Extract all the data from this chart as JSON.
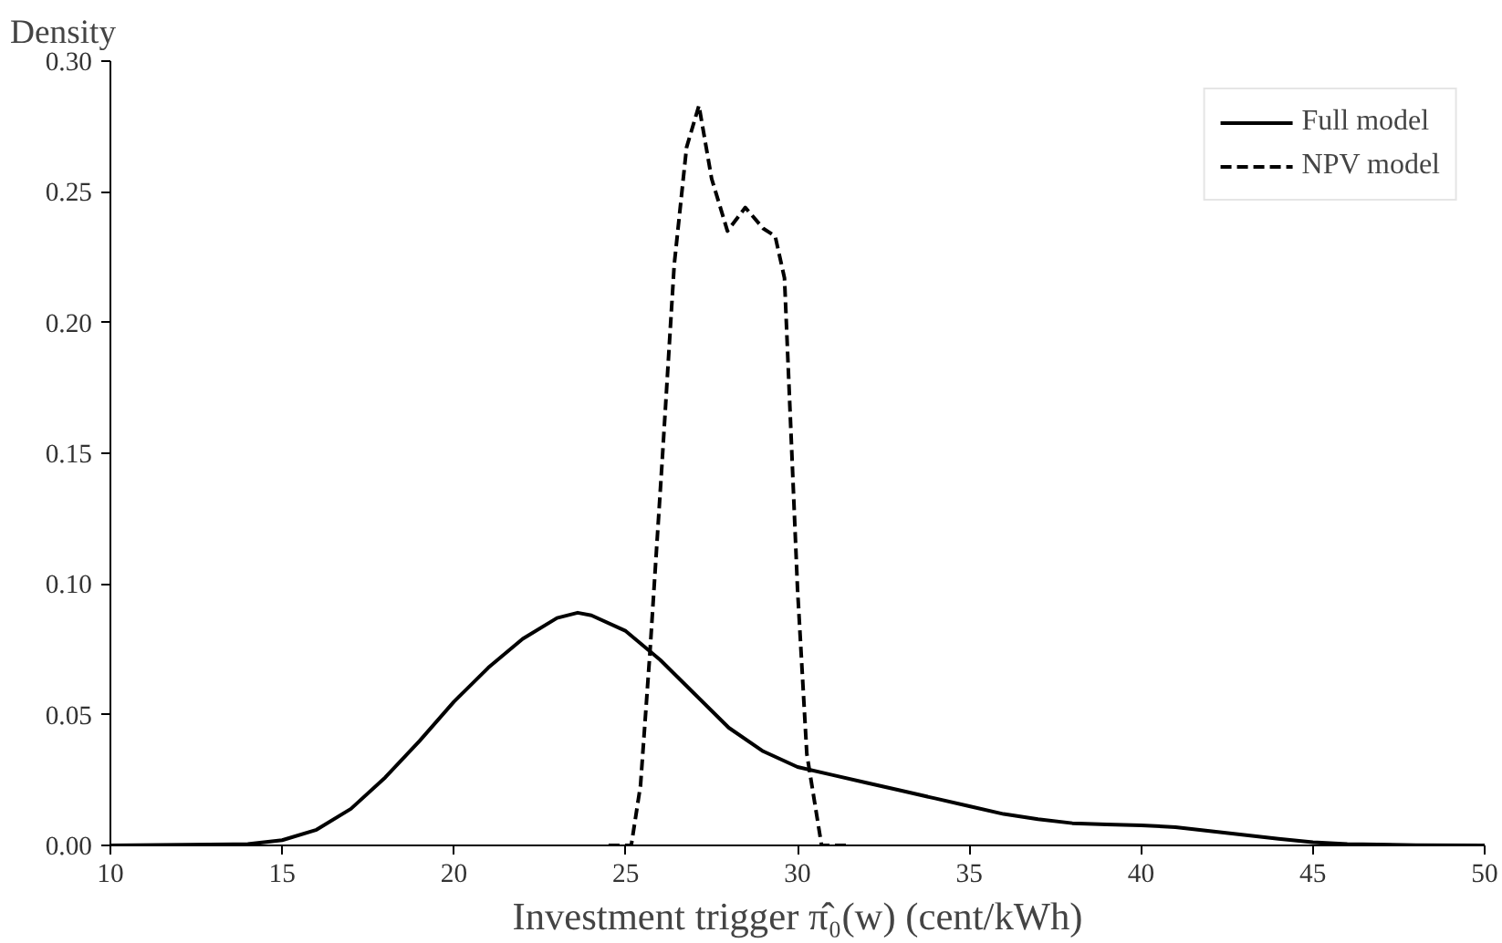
{
  "chart_data": {
    "type": "line",
    "xlabel": "Investment trigger π̂₀(w) (cent/kWh)",
    "ylabel": "Density",
    "xlim": [
      10,
      50
    ],
    "ylim": [
      0,
      0.3
    ],
    "xticks": [
      10,
      15,
      20,
      25,
      30,
      35,
      40,
      45,
      50
    ],
    "yticks": [
      {
        "value": 0,
        "label": "0.00"
      },
      {
        "value": 0.05,
        "label": "0.05"
      },
      {
        "value": 0.1,
        "label": "0.10"
      },
      {
        "value": 0.15,
        "label": "0.15"
      },
      {
        "value": 0.2,
        "label": "0.20"
      },
      {
        "value": 0.25,
        "label": "0.25"
      },
      {
        "value": 0.3,
        "label": "0.30"
      }
    ],
    "grid": false,
    "legend": "top right",
    "series": [
      {
        "name": "Full model",
        "color": "#000000",
        "line_style": "solid",
        "x": [
          10,
          14,
          15,
          16,
          17,
          18,
          19,
          20,
          21,
          22,
          23,
          23.6,
          24,
          25,
          26,
          27,
          28,
          29,
          30,
          31,
          32,
          33,
          34,
          35,
          36,
          37,
          38,
          39,
          40,
          41,
          42,
          43,
          44,
          45,
          46,
          48,
          50
        ],
        "values": [
          0,
          0.0005,
          0.002,
          0.006,
          0.014,
          0.026,
          0.04,
          0.055,
          0.068,
          0.079,
          0.087,
          0.089,
          0.088,
          0.082,
          0.071,
          0.058,
          0.045,
          0.036,
          0.03,
          0.027,
          0.024,
          0.021,
          0.018,
          0.015,
          0.012,
          0.01,
          0.0085,
          0.008,
          0.0077,
          0.007,
          0.0055,
          0.004,
          0.0025,
          0.0012,
          0.0005,
          0.0001,
          0
        ]
      },
      {
        "name": "NPV model",
        "color": "#000000",
        "line_style": "dashed",
        "x": [
          24.5,
          25.16,
          25.43,
          25.7,
          26.06,
          26.41,
          26.77,
          27.13,
          27.5,
          27.96,
          28.48,
          29.0,
          29.35,
          29.62,
          30.0,
          30.27,
          30.7,
          31.5
        ],
        "values": [
          0,
          0,
          0.023,
          0.073,
          0.147,
          0.222,
          0.267,
          0.283,
          0.255,
          0.235,
          0.244,
          0.236,
          0.233,
          0.217,
          0.098,
          0.035,
          0,
          0
        ]
      }
    ]
  }
}
